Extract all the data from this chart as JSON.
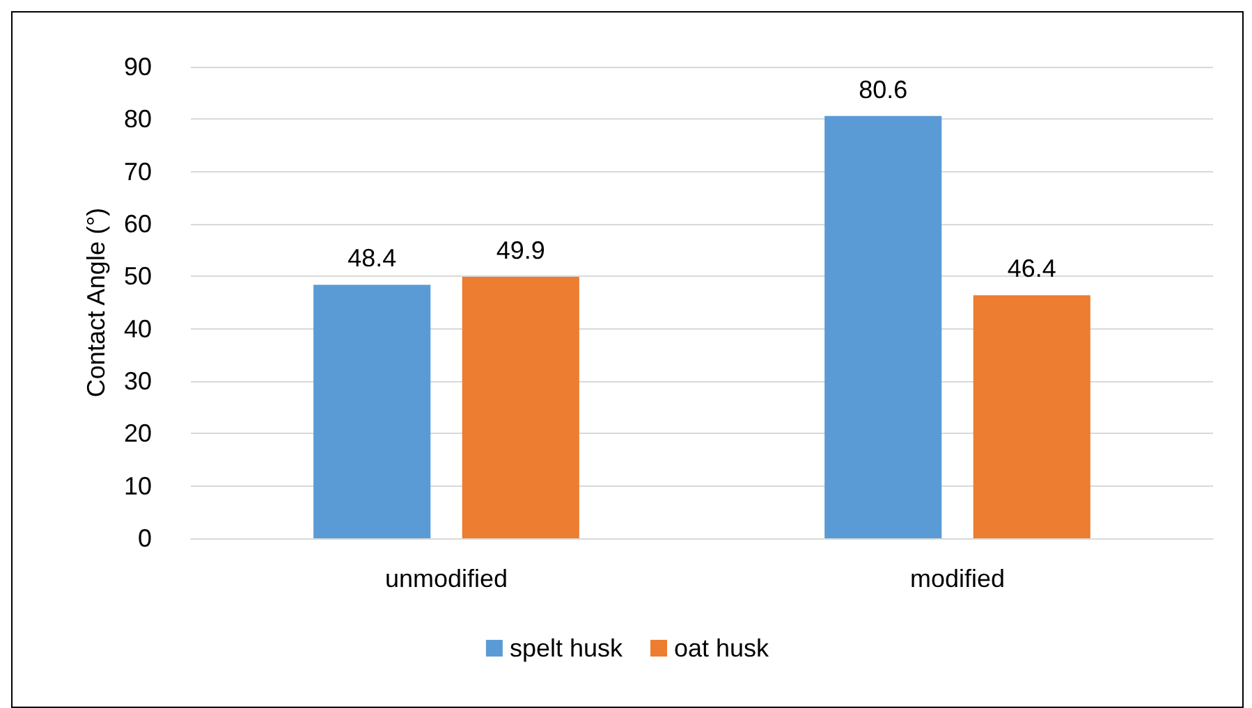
{
  "chart_data": {
    "type": "bar",
    "ylabel": "Contact Angle (°)",
    "categories": [
      "unmodified",
      "modified"
    ],
    "series": [
      {
        "name": "spelt husk",
        "color": "#5b9bd5",
        "values": [
          48.4,
          80.6
        ]
      },
      {
        "name": "oat husk",
        "color": "#ed7d31",
        "values": [
          49.9,
          46.4
        ]
      }
    ],
    "ylim": [
      0,
      90
    ],
    "yticks": [
      0,
      10,
      20,
      30,
      40,
      50,
      60,
      70,
      80,
      90
    ],
    "grid": "y",
    "legend": "bottom",
    "data_labels": true
  }
}
